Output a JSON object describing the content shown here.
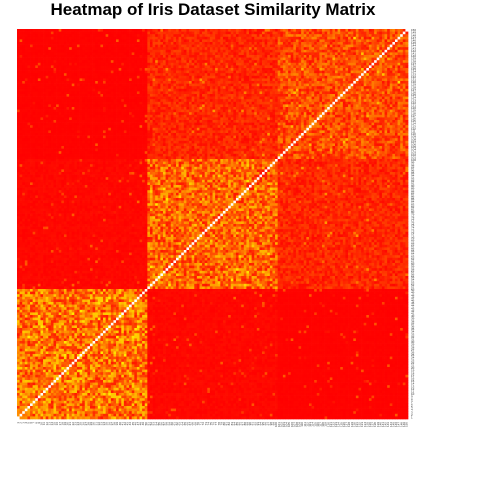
{
  "chart_data": {
    "type": "heatmap",
    "title": "Heatmap of Iris Dataset Similarity Matrix",
    "xlabel": "",
    "ylabel": "",
    "n": 150,
    "row_order": "reversed",
    "colors": {
      "low": "#FF0000",
      "mid": "#FF8000",
      "high": "#FFFF00",
      "max": "#FFFFFF"
    },
    "clusters": [
      {
        "start": 0,
        "end": 49
      },
      {
        "start": 50,
        "end": 99
      },
      {
        "start": 100,
        "end": 149
      }
    ],
    "value_range": [
      0,
      1
    ],
    "diagonal_value": 1,
    "block_levels": {
      "within_cluster_0": 0.45,
      "within_cluster_1": 0.4,
      "within_cluster_2": 0.3,
      "cluster_0_vs_1": 0.03,
      "cluster_0_vs_2": 0.01,
      "cluster_1_vs_2": 0.15
    },
    "tick_labels": [
      "1",
      "2",
      "3",
      "4",
      "5",
      "6",
      "7",
      "8",
      "9",
      "10",
      "11",
      "12",
      "13",
      "14",
      "15",
      "16",
      "17",
      "18",
      "19",
      "20",
      "21",
      "22",
      "23",
      "24",
      "25",
      "26",
      "27",
      "28",
      "29",
      "30",
      "31",
      "32",
      "33",
      "34",
      "35",
      "36",
      "37",
      "38",
      "39",
      "40",
      "41",
      "42",
      "43",
      "44",
      "45",
      "46",
      "47",
      "48",
      "49",
      "50",
      "51",
      "52",
      "53",
      "54",
      "55",
      "56",
      "57",
      "58",
      "59",
      "60",
      "61",
      "62",
      "63",
      "64",
      "65",
      "66",
      "67",
      "68",
      "69",
      "70",
      "71",
      "72",
      "73",
      "74",
      "75",
      "76",
      "77",
      "78",
      "79",
      "80",
      "81",
      "82",
      "83",
      "84",
      "85",
      "86",
      "87",
      "88",
      "89",
      "90",
      "91",
      "92",
      "93",
      "94",
      "95",
      "96",
      "97",
      "98",
      "99",
      "100",
      "101",
      "102",
      "103",
      "104",
      "105",
      "106",
      "107",
      "108",
      "109",
      "110",
      "111",
      "112",
      "113",
      "114",
      "115",
      "116",
      "117",
      "118",
      "119",
      "120",
      "121",
      "122",
      "123",
      "124",
      "125",
      "126",
      "127",
      "128",
      "129",
      "130",
      "131",
      "132",
      "133",
      "134",
      "135",
      "136",
      "137",
      "138",
      "139",
      "140",
      "141",
      "142",
      "143",
      "144",
      "145",
      "146",
      "147",
      "148",
      "149",
      "150"
    ]
  }
}
